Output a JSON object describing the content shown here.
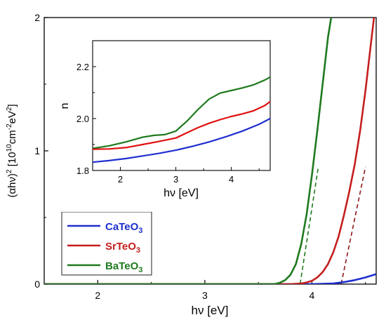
{
  "chart_data": [
    {
      "type": "line",
      "xlabel": "hν [eV]",
      "ylabel_parts": [
        "(αhν)",
        "2",
        " [10",
        "10",
        "cm",
        "-2",
        "eV",
        "2",
        "]"
      ],
      "xlim": [
        1.5,
        4.6
      ],
      "ylim": [
        0,
        2
      ],
      "xticks": [
        "2",
        "3",
        "4"
      ],
      "yticks": [
        "0",
        "1",
        "2"
      ],
      "legend_position": "bottom-left",
      "series": [
        {
          "name": "CaTeO",
          "subscript": "3",
          "color": "#1f2fd0",
          "x": [
            1.5,
            2.0,
            3.0,
            4.0,
            4.2,
            4.3,
            4.4,
            4.5,
            4.6
          ],
          "y": [
            0,
            0,
            0,
            0,
            0.005,
            0.015,
            0.03,
            0.05,
            0.075
          ]
        },
        {
          "name": "SrTeO",
          "subscript": "3",
          "color": "#c41e1e",
          "x": [
            1.5,
            3.0,
            3.8,
            3.9,
            3.95,
            4.0,
            4.05,
            4.1,
            4.15,
            4.2,
            4.25,
            4.3,
            4.35,
            4.4,
            4.45,
            4.5,
            4.55,
            4.58
          ],
          "y": [
            0,
            0,
            0,
            0.005,
            0.012,
            0.025,
            0.05,
            0.09,
            0.15,
            0.24,
            0.36,
            0.52,
            0.7,
            0.9,
            1.15,
            1.45,
            1.8,
            2.0
          ]
        },
        {
          "name": "BaTeO",
          "subscript": "3",
          "color": "#1e7a1e",
          "x": [
            1.5,
            3.0,
            3.65,
            3.7,
            3.75,
            3.8,
            3.85,
            3.9,
            3.95,
            4.0,
            4.05,
            4.1,
            4.15,
            4.18
          ],
          "y": [
            0,
            0,
            0,
            0.01,
            0.03,
            0.07,
            0.15,
            0.3,
            0.52,
            0.82,
            1.15,
            1.5,
            1.85,
            2.0
          ]
        }
      ],
      "fits": [
        {
          "color": "#1e7a1e",
          "x": [
            3.88,
            4.06
          ],
          "y": [
            -0.05,
            0.88
          ]
        },
        {
          "color": "#8b1a1a",
          "x": [
            4.26,
            4.5
          ],
          "y": [
            -0.05,
            0.88
          ]
        }
      ]
    },
    {
      "type": "line",
      "xlabel": "hν [eV]",
      "ylabel": "n",
      "xlim": [
        1.5,
        4.7
      ],
      "ylim": [
        1.8,
        2.3
      ],
      "xticks": [
        "2",
        "3",
        "4"
      ],
      "yticks": [
        "1.8",
        "2.0",
        "2.2"
      ],
      "series": [
        {
          "color": "#1e7a1e",
          "x": [
            1.5,
            1.8,
            2.1,
            2.4,
            2.6,
            2.8,
            3.0,
            3.2,
            3.4,
            3.6,
            3.8,
            4.0,
            4.2,
            4.4,
            4.6,
            4.7
          ],
          "y": [
            1.885,
            1.895,
            1.91,
            1.928,
            1.935,
            1.938,
            1.952,
            1.99,
            2.035,
            2.075,
            2.098,
            2.108,
            2.118,
            2.13,
            2.148,
            2.16
          ]
        },
        {
          "color": "#e01010",
          "x": [
            1.5,
            1.8,
            2.1,
            2.4,
            2.7,
            3.0,
            3.2,
            3.4,
            3.6,
            3.8,
            4.0,
            4.2,
            4.4,
            4.6,
            4.7
          ],
          "y": [
            1.882,
            1.883,
            1.888,
            1.9,
            1.912,
            1.925,
            1.945,
            1.965,
            1.982,
            1.996,
            2.008,
            2.018,
            2.03,
            2.05,
            2.065
          ]
        },
        {
          "color": "#1f2fd0",
          "x": [
            1.5,
            1.8,
            2.1,
            2.4,
            2.7,
            3.0,
            3.3,
            3.6,
            3.9,
            4.2,
            4.5,
            4.7
          ],
          "y": [
            1.832,
            1.838,
            1.846,
            1.856,
            1.866,
            1.878,
            1.893,
            1.91,
            1.93,
            1.952,
            1.978,
            2.0
          ]
        }
      ]
    }
  ]
}
